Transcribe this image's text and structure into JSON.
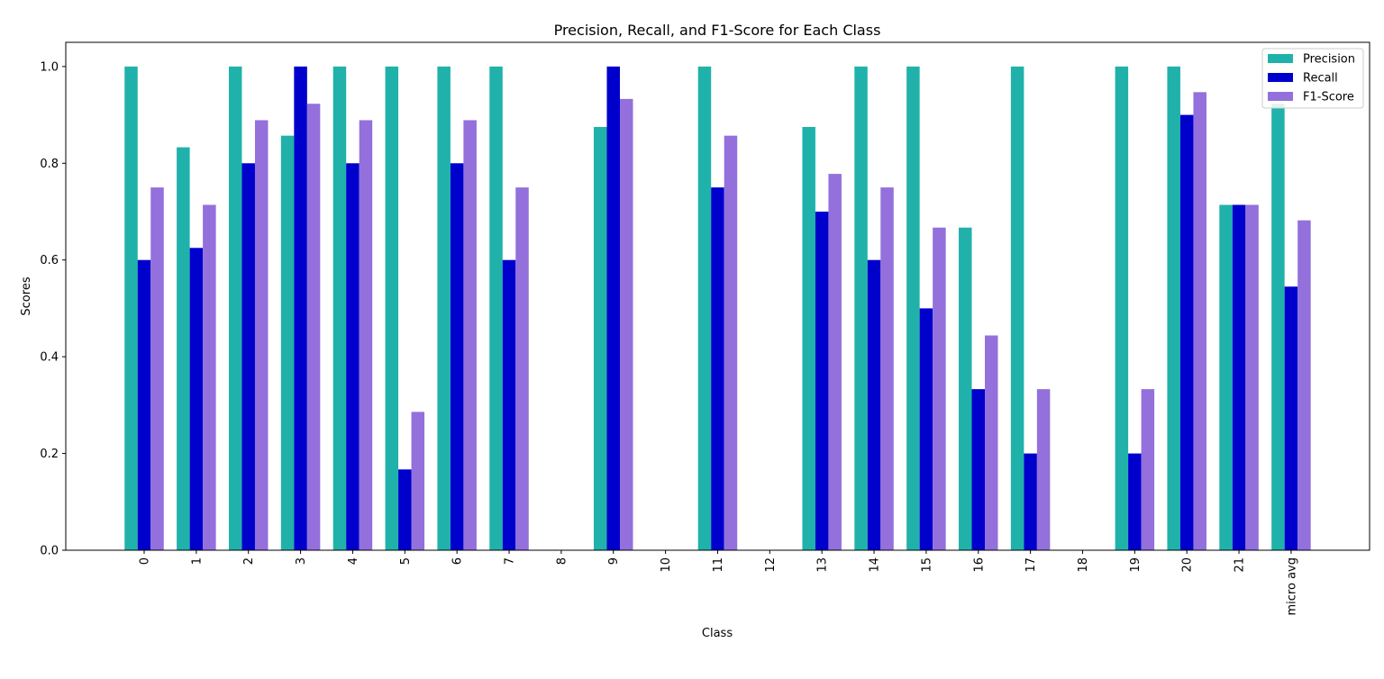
{
  "chart_data": {
    "type": "bar",
    "title": "Precision, Recall, and F1-Score for Each Class",
    "xlabel": "Class",
    "ylabel": "Scores",
    "categories": [
      "0",
      "1",
      "2",
      "3",
      "4",
      "5",
      "6",
      "7",
      "8",
      "9",
      "10",
      "11",
      "12",
      "13",
      "14",
      "15",
      "16",
      "17",
      "18",
      "19",
      "20",
      "21",
      "micro avg"
    ],
    "series": [
      {
        "name": "Precision",
        "color": "#20b2aa",
        "values": [
          1.0,
          0.833,
          1.0,
          0.857,
          1.0,
          1.0,
          1.0,
          1.0,
          0.0,
          0.875,
          0.0,
          1.0,
          0.0,
          0.875,
          1.0,
          1.0,
          0.667,
          1.0,
          0.0,
          1.0,
          1.0,
          0.714,
          0.923
        ]
      },
      {
        "name": "Recall",
        "color": "#0000cd",
        "values": [
          0.6,
          0.625,
          0.8,
          1.0,
          0.8,
          0.167,
          0.8,
          0.6,
          0.0,
          1.0,
          0.0,
          0.75,
          0.0,
          0.7,
          0.6,
          0.5,
          0.333,
          0.2,
          0.0,
          0.2,
          0.9,
          0.714,
          0.545
        ]
      },
      {
        "name": "F1-Score",
        "color": "#9370db",
        "values": [
          0.75,
          0.714,
          0.889,
          0.923,
          0.889,
          0.286,
          0.889,
          0.75,
          0.0,
          0.933,
          0.0,
          0.857,
          0.0,
          0.778,
          0.75,
          0.667,
          0.444,
          0.333,
          0.0,
          0.333,
          0.947,
          0.714,
          0.682
        ]
      }
    ],
    "ylim": [
      0,
      1.05
    ],
    "yticks": [
      "0.0",
      "0.2",
      "0.4",
      "0.6",
      "0.8",
      "1.0"
    ],
    "grid": false,
    "legend_position": "top-right"
  }
}
